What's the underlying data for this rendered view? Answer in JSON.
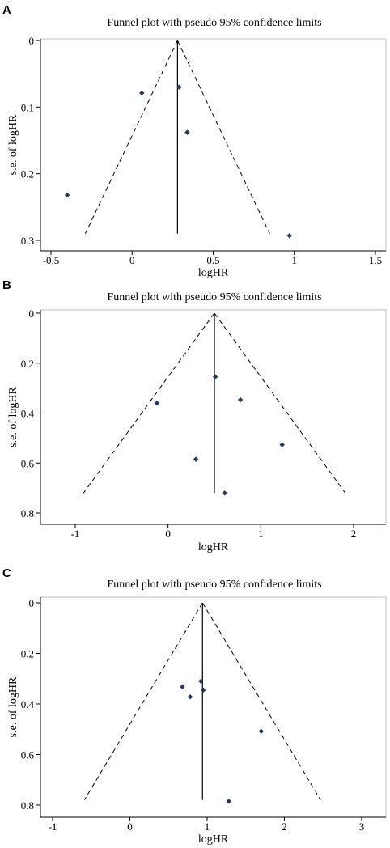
{
  "figure": {
    "panels": [
      "A",
      "B",
      "C"
    ]
  },
  "chart_data": [
    {
      "panel": "A",
      "type": "scatter",
      "title": "Funnel plot with pseudo 95% confidence limits",
      "xlabel": "logHR",
      "ylabel": "s.e. of logHR",
      "xlim": [
        -0.5,
        1.5
      ],
      "ylim": [
        0,
        0.3
      ],
      "y_reversed": true,
      "x_ticks": [
        -0.5,
        0,
        0.5,
        1,
        1.5
      ],
      "x_tick_labels": [
        "-0.5",
        "0",
        "0.5",
        "1",
        "1.5"
      ],
      "y_ticks": [
        0,
        0.1,
        0.2,
        0.3
      ],
      "y_tick_labels": [
        "0",
        "0.1",
        "0.2",
        "0.3"
      ],
      "pooled_estimate": 0.28,
      "max_se": 0.29,
      "points": [
        {
          "x": -0.4,
          "y": 0.232
        },
        {
          "x": 0.06,
          "y": 0.079
        },
        {
          "x": 0.29,
          "y": 0.07
        },
        {
          "x": 0.34,
          "y": 0.138
        },
        {
          "x": 0.97,
          "y": 0.293
        }
      ],
      "grid": false,
      "legend": "none"
    },
    {
      "panel": "B",
      "type": "scatter",
      "title": "Funnel plot with pseudo 95% confidence limits",
      "xlabel": "logHR",
      "ylabel": "s.e. of logHR",
      "xlim": [
        -1,
        2
      ],
      "ylim": [
        0,
        0.8
      ],
      "y_reversed": true,
      "x_ticks": [
        -1,
        0,
        1,
        2
      ],
      "x_tick_labels": [
        "-1",
        "0",
        "1",
        "2"
      ],
      "y_ticks": [
        0,
        0.2,
        0.4,
        0.6,
        0.8
      ],
      "y_tick_labels": [
        "0",
        "0.2",
        "0.4",
        "0.6",
        "0.8"
      ],
      "pooled_estimate": 0.5,
      "max_se": 0.72,
      "points": [
        {
          "x": -0.12,
          "y": 0.36
        },
        {
          "x": 0.3,
          "y": 0.585
        },
        {
          "x": 0.51,
          "y": 0.255
        },
        {
          "x": 0.61,
          "y": 0.72
        },
        {
          "x": 0.78,
          "y": 0.347
        },
        {
          "x": 1.23,
          "y": 0.527
        }
      ],
      "grid": false,
      "legend": "none"
    },
    {
      "panel": "C",
      "type": "scatter",
      "title": "Funnel plot with pseudo 95% confidence limits",
      "xlabel": "logHR",
      "ylabel": "s.e. of logHR",
      "xlim": [
        -1,
        3
      ],
      "ylim": [
        0,
        0.8
      ],
      "y_reversed": true,
      "x_ticks": [
        -1,
        0,
        1,
        2,
        3
      ],
      "x_tick_labels": [
        "-1",
        "0",
        "1",
        "2",
        "3"
      ],
      "y_ticks": [
        0,
        0.2,
        0.4,
        0.6,
        0.8
      ],
      "y_tick_labels": [
        "0",
        "0.2",
        "0.4",
        "0.6",
        "0.8"
      ],
      "pooled_estimate": 0.94,
      "max_se": 0.78,
      "points": [
        {
          "x": 0.68,
          "y": 0.332
        },
        {
          "x": 0.78,
          "y": 0.372
        },
        {
          "x": 0.92,
          "y": 0.31
        },
        {
          "x": 0.95,
          "y": 0.345
        },
        {
          "x": 1.28,
          "y": 0.785
        },
        {
          "x": 1.7,
          "y": 0.508
        }
      ],
      "grid": false,
      "legend": "none"
    }
  ]
}
